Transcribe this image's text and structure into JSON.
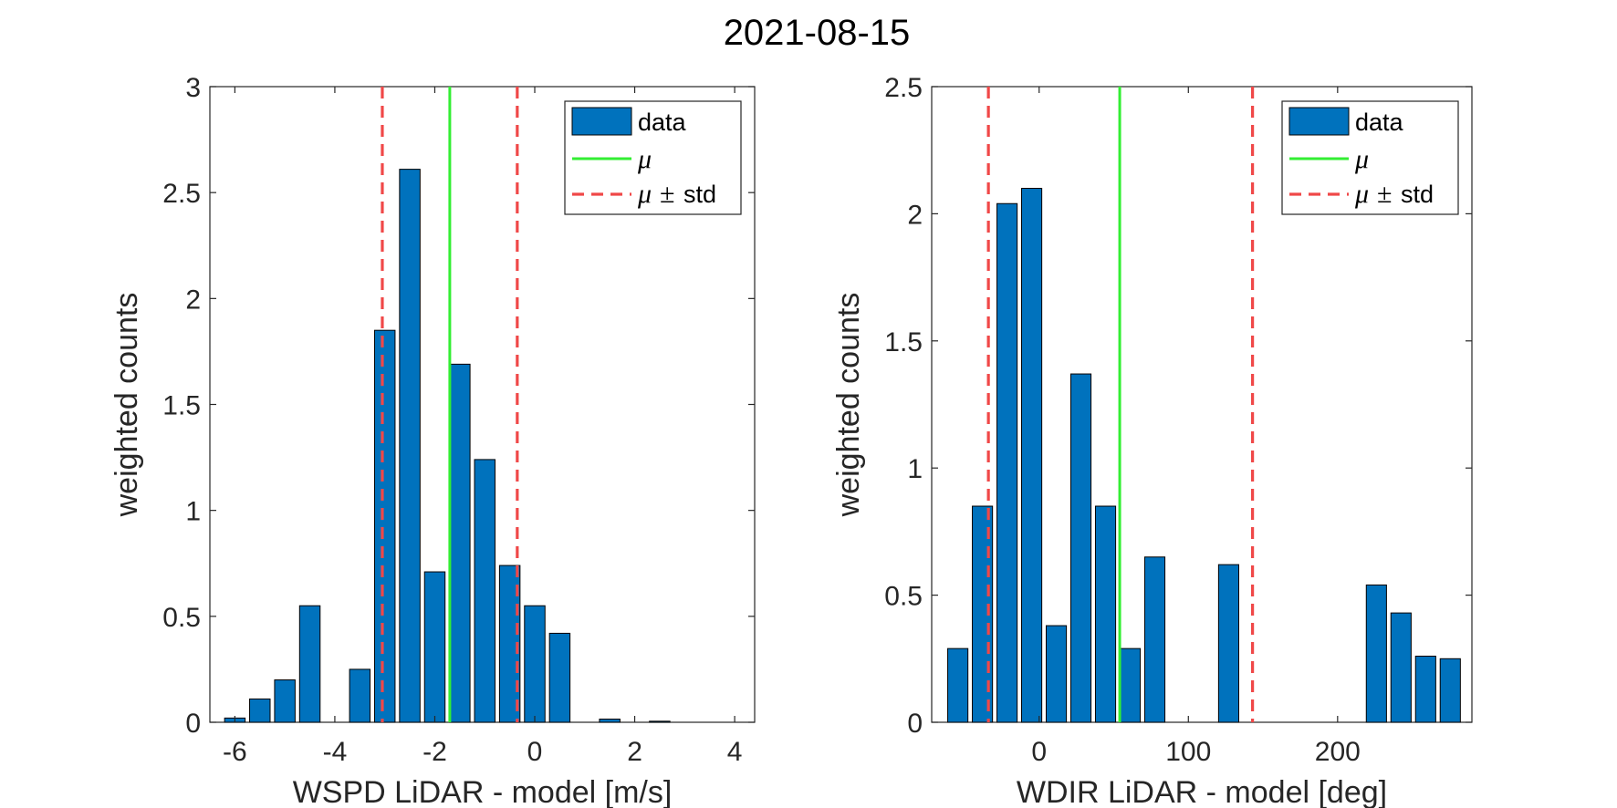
{
  "figure": {
    "title": "2021-08-15",
    "colors": {
      "bar": "#0072BD",
      "bar_edge": "#000000",
      "mean": "#33EE33",
      "std": "#F04848",
      "axis": "#262626"
    }
  },
  "chart_data": [
    {
      "type": "bar",
      "title": "",
      "xlabel": "WSPD LiDAR - model [m/s]",
      "ylabel": "weighted counts",
      "xlim": [
        -6.5,
        4.4
      ],
      "ylim": [
        0,
        3
      ],
      "xticks": [
        -6,
        -4,
        -2,
        0,
        2,
        4
      ],
      "xtick_labels": [
        "-6",
        "-4",
        "-2",
        "0",
        "2",
        "4"
      ],
      "yticks": [
        0,
        0.5,
        1,
        1.5,
        2,
        2.5,
        3
      ],
      "ytick_labels": [
        "0",
        "0.5",
        "1",
        "1.5",
        "2",
        "2.5",
        "3"
      ],
      "bin_width": 0.5,
      "bar_fraction": 0.82,
      "bins": [
        {
          "x": -6.0,
          "y": 0.02
        },
        {
          "x": -5.5,
          "y": 0.11
        },
        {
          "x": -5.0,
          "y": 0.2
        },
        {
          "x": -4.5,
          "y": 0.55
        },
        {
          "x": -4.0,
          "y": 0.0
        },
        {
          "x": -3.5,
          "y": 0.25
        },
        {
          "x": -3.0,
          "y": 1.85
        },
        {
          "x": -2.5,
          "y": 2.61
        },
        {
          "x": -2.0,
          "y": 0.71
        },
        {
          "x": -1.5,
          "y": 1.69
        },
        {
          "x": -1.0,
          "y": 1.24
        },
        {
          "x": -0.5,
          "y": 0.74
        },
        {
          "x": 0.0,
          "y": 0.55
        },
        {
          "x": 0.5,
          "y": 0.42
        },
        {
          "x": 1.0,
          "y": 0.0
        },
        {
          "x": 1.5,
          "y": 0.015
        },
        {
          "x": 2.0,
          "y": 0.0
        },
        {
          "x": 2.5,
          "y": 0.005
        }
      ],
      "mean": -1.7,
      "std_lines": [
        -3.05,
        -0.35
      ],
      "legend": {
        "position": "top-right",
        "entries": [
          {
            "kind": "patch",
            "label": "data"
          },
          {
            "kind": "mean",
            "symbol": "μ",
            "label": ""
          },
          {
            "kind": "std",
            "symbol": "μ",
            "pm": "±",
            "label": "std"
          }
        ]
      }
    },
    {
      "type": "bar",
      "title": "",
      "xlabel": "WDIR LiDAR - model [deg]",
      "ylabel": "weighted counts",
      "xlim": [
        -72,
        290
      ],
      "ylim": [
        0,
        2.5
      ],
      "xticks": [
        0,
        100,
        200
      ],
      "xtick_labels": [
        "0",
        "100",
        "200"
      ],
      "yticks": [
        0,
        0.5,
        1,
        1.5,
        2,
        2.5
      ],
      "ytick_labels": [
        "0",
        "0.5",
        "1",
        "1.5",
        "2",
        "2.5"
      ],
      "bin_width": 16.5,
      "bar_fraction": 0.82,
      "bins": [
        {
          "x": -54.5,
          "y": 0.29
        },
        {
          "x": -38.0,
          "y": 0.85
        },
        {
          "x": -21.5,
          "y": 2.04
        },
        {
          "x": -5.0,
          "y": 2.1
        },
        {
          "x": 11.5,
          "y": 0.38
        },
        {
          "x": 28.0,
          "y": 1.37
        },
        {
          "x": 44.5,
          "y": 0.85
        },
        {
          "x": 61.0,
          "y": 0.29
        },
        {
          "x": 77.5,
          "y": 0.65
        },
        {
          "x": 94.0,
          "y": 0.0
        },
        {
          "x": 110.5,
          "y": 0.0
        },
        {
          "x": 127.0,
          "y": 0.62
        },
        {
          "x": 143.5,
          "y": 0.0
        },
        {
          "x": 160.0,
          "y": 0.0
        },
        {
          "x": 176.5,
          "y": 0.0
        },
        {
          "x": 193.0,
          "y": 0.0
        },
        {
          "x": 209.5,
          "y": 0.0
        },
        {
          "x": 226.0,
          "y": 0.54
        },
        {
          "x": 242.5,
          "y": 0.43
        },
        {
          "x": 259.0,
          "y": 0.26
        },
        {
          "x": 275.5,
          "y": 0.25
        }
      ],
      "mean": 54,
      "std_lines": [
        -34,
        143
      ],
      "legend": {
        "position": "top-right",
        "entries": [
          {
            "kind": "patch",
            "label": "data"
          },
          {
            "kind": "mean",
            "symbol": "μ",
            "label": ""
          },
          {
            "kind": "std",
            "symbol": "μ",
            "pm": "±",
            "label": "std"
          }
        ]
      }
    }
  ]
}
